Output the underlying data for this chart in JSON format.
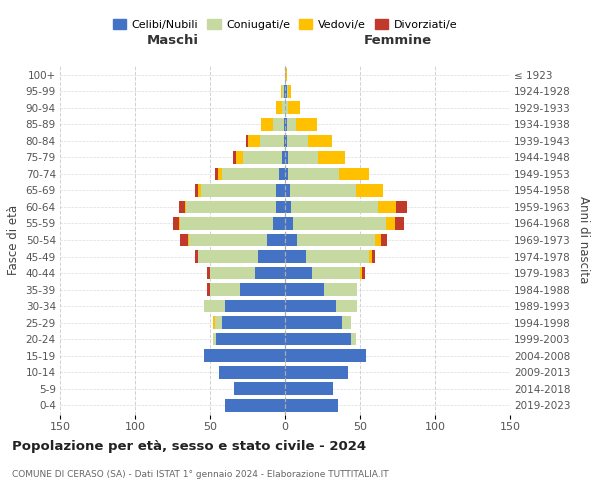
{
  "age_groups": [
    "0-4",
    "5-9",
    "10-14",
    "15-19",
    "20-24",
    "25-29",
    "30-34",
    "35-39",
    "40-44",
    "45-49",
    "50-54",
    "55-59",
    "60-64",
    "65-69",
    "70-74",
    "75-79",
    "80-84",
    "85-89",
    "90-94",
    "95-99",
    "100+"
  ],
  "birth_years": [
    "2019-2023",
    "2014-2018",
    "2009-2013",
    "2004-2008",
    "1999-2003",
    "1994-1998",
    "1989-1993",
    "1984-1988",
    "1979-1983",
    "1974-1978",
    "1969-1973",
    "1964-1968",
    "1959-1963",
    "1954-1958",
    "1949-1953",
    "1944-1948",
    "1939-1943",
    "1934-1938",
    "1929-1933",
    "1924-1928",
    "≤ 1923"
  ],
  "maschi": {
    "celibi": [
      40,
      34,
      44,
      54,
      46,
      42,
      40,
      30,
      20,
      18,
      12,
      8,
      6,
      6,
      4,
      2,
      1,
      1,
      0,
      1,
      0
    ],
    "coniugati": [
      0,
      0,
      0,
      0,
      2,
      5,
      14,
      20,
      30,
      40,
      52,
      62,
      60,
      50,
      38,
      26,
      16,
      7,
      2,
      1,
      0
    ],
    "vedovi": [
      0,
      0,
      0,
      0,
      0,
      1,
      0,
      0,
      0,
      0,
      1,
      1,
      1,
      2,
      3,
      5,
      8,
      8,
      4,
      1,
      0
    ],
    "divorziati": [
      0,
      0,
      0,
      0,
      0,
      0,
      0,
      2,
      2,
      2,
      5,
      4,
      4,
      2,
      2,
      2,
      1,
      0,
      0,
      0,
      0
    ]
  },
  "femmine": {
    "nubili": [
      35,
      32,
      42,
      54,
      44,
      38,
      34,
      26,
      18,
      14,
      8,
      5,
      4,
      3,
      2,
      2,
      1,
      1,
      0,
      1,
      0
    ],
    "coniugate": [
      0,
      0,
      0,
      0,
      3,
      6,
      14,
      22,
      32,
      42,
      52,
      62,
      58,
      44,
      34,
      20,
      14,
      6,
      2,
      1,
      0
    ],
    "vedove": [
      0,
      0,
      0,
      0,
      0,
      0,
      0,
      0,
      1,
      2,
      4,
      6,
      12,
      18,
      20,
      18,
      16,
      14,
      8,
      2,
      1
    ],
    "divorziate": [
      0,
      0,
      0,
      0,
      0,
      0,
      0,
      0,
      2,
      2,
      4,
      6,
      7,
      0,
      0,
      0,
      0,
      0,
      0,
      0,
      0
    ]
  },
  "colors": {
    "celibi": "#4472c4",
    "coniugati": "#c5d9a0",
    "vedovi": "#ffc000",
    "divorziati": "#c0392b"
  },
  "legend_labels": [
    "Celibi/Nubili",
    "Coniugati/e",
    "Vedovi/e",
    "Divorziati/e"
  ],
  "title": "Popolazione per età, sesso e stato civile - 2024",
  "subtitle": "COMUNE DI CERASO (SA) - Dati ISTAT 1° gennaio 2024 - Elaborazione TUTTITALIA.IT",
  "xlabel_left": "Maschi",
  "xlabel_right": "Femmine",
  "ylabel_left": "Fasce di età",
  "ylabel_right": "Anni di nascita",
  "xlim": 150,
  "bg_color": "#ffffff",
  "grid_color": "#cccccc"
}
